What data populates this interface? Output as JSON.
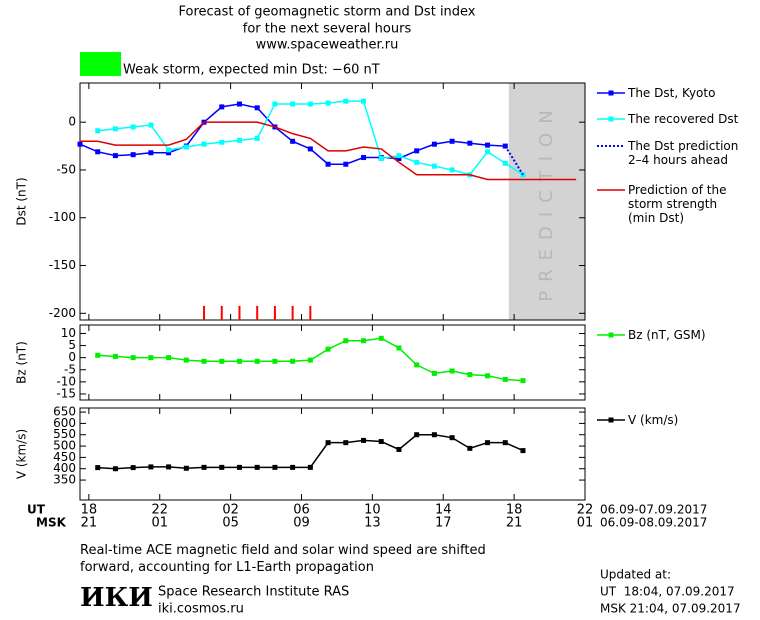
{
  "header": {
    "title": "Forecast of geomagnetic storm and Dst index",
    "subtitle": "for the next several hours",
    "source": "www.spaceweather.ru"
  },
  "storm_level": {
    "label": "Weak storm, expected min Dst: −60 nT",
    "color": "#00ff00"
  },
  "chart_data": [
    {
      "type": "line",
      "ylabel": "Dst (nT)",
      "xlim": [
        17.5,
        46
      ],
      "ylim": [
        -207,
        41
      ],
      "yticks": [
        0,
        -50,
        -100,
        -150,
        -200
      ],
      "prediction_band": [
        41.7,
        46
      ],
      "prediction_label": "PREDICTION",
      "prediction_color": "#d3d3d3",
      "storm_marks": {
        "color": "#ff0000",
        "x": [
          24.5,
          25.5,
          26.5,
          27.5,
          28.5,
          29.5,
          30.5
        ]
      },
      "series": [
        {
          "name": "The Dst, Kyoto",
          "color": "#0000ff",
          "marker": "square",
          "style": "solid",
          "x": [
            17.5,
            18.5,
            19.5,
            20.5,
            21.5,
            22.5,
            23.5,
            24.5,
            25.5,
            26.5,
            27.5,
            28.5,
            29.5,
            30.5,
            31.5,
            32.5,
            33.5,
            34.5,
            35.5,
            36.5,
            37.5,
            38.5,
            39.5,
            40.5,
            41.5
          ],
          "values": [
            -23,
            -31,
            -35,
            -34,
            -32,
            -32,
            -25,
            0,
            16,
            19,
            15,
            -5,
            -20,
            -28,
            -44,
            -44,
            -37,
            -37,
            -38,
            -30,
            -23,
            -20,
            -22,
            -24,
            -25
          ]
        },
        {
          "name": "The recovered Dst",
          "color": "#00ffff",
          "marker": "square",
          "style": "solid",
          "x": [
            18.5,
            19.5,
            20.5,
            21.5,
            22.5,
            23.5,
            24.5,
            25.5,
            26.5,
            27.5,
            28.5,
            29.5,
            30.5,
            31.5,
            32.5,
            33.5,
            34.5,
            35.5,
            36.5,
            37.5,
            38.5,
            39.5,
            40.5,
            41.5,
            42.5
          ],
          "values": [
            -9,
            -7,
            -5,
            -3,
            -29,
            -26,
            -23,
            -21,
            -19,
            -17,
            19,
            19,
            19,
            20,
            22,
            22,
            -38,
            -35,
            -42,
            -46,
            -50,
            -55,
            -31,
            -43,
            -55
          ]
        },
        {
          "name": "The Dst prediction\n2–4 hours ahead",
          "color": "#0000ff",
          "marker": "none",
          "style": "dotted",
          "x": [
            41.5,
            42.5
          ],
          "values": [
            -25,
            -55
          ]
        },
        {
          "name": "Prediction of the\nstorm strength\n(min Dst)",
          "color": "#dd0000",
          "marker": "none",
          "style": "solid",
          "x": [
            17.5,
            18.5,
            19.5,
            20.5,
            21.5,
            22.5,
            23.5,
            24.5,
            25.5,
            26.5,
            27.5,
            28.5,
            29.5,
            30.5,
            31.5,
            32.5,
            33.5,
            34.5,
            35.5,
            36.5,
            37.5,
            38.5,
            39.5,
            40.5,
            41.5,
            42.5,
            43.5,
            44.5,
            45.5
          ],
          "values": [
            -20,
            -20,
            -24,
            -24,
            -24,
            -24,
            -18,
            0,
            0,
            0,
            0,
            -5,
            -12,
            -17,
            -30,
            -30,
            -26,
            -28,
            -42,
            -55,
            -55,
            -55,
            -55,
            -60,
            -60,
            -60,
            -60,
            -60,
            -60
          ]
        }
      ]
    },
    {
      "type": "line",
      "ylabel": "Bz (nT)",
      "xlim": [
        17.5,
        46
      ],
      "ylim": [
        -17.5,
        13.5
      ],
      "yticks": [
        10,
        5,
        0,
        -5,
        -10,
        -15
      ],
      "series": [
        {
          "name": "Bz (nT, GSM)",
          "color": "#00ee00",
          "marker": "square",
          "style": "solid",
          "x": [
            18.5,
            19.5,
            20.5,
            21.5,
            22.5,
            23.5,
            24.5,
            25.5,
            26.5,
            27.5,
            28.5,
            29.5,
            30.5,
            31.5,
            32.5,
            33.5,
            34.5,
            35.5,
            36.5,
            37.5,
            38.5,
            39.5,
            40.5,
            41.5,
            42.5
          ],
          "values": [
            1,
            0.5,
            0,
            0,
            0,
            -1,
            -1.5,
            -1.5,
            -1.5,
            -1.5,
            -1.5,
            -1.5,
            -1,
            3.5,
            7,
            7,
            8,
            4,
            -3,
            -6.5,
            -5.5,
            -7,
            -7.5,
            -9,
            -9.5
          ]
        }
      ]
    },
    {
      "type": "line",
      "ylabel": "V (km/s)",
      "xlim": [
        17.5,
        46
      ],
      "ylim": [
        262,
        668
      ],
      "yticks": [
        350,
        400,
        450,
        500,
        550,
        600,
        650
      ],
      "xticks": [
        18,
        22,
        {
          "value": 26,
          "label": "02"
        },
        {
          "value": 30,
          "label": "06"
        },
        {
          "value": 34,
          "label": "10"
        },
        {
          "value": 38,
          "label": "14"
        },
        {
          "value": 42,
          "label": "18"
        },
        {
          "value": 46,
          "label": "22"
        }
      ],
      "xticks_msk": [
        {
          "value": 18,
          "label": "21"
        },
        {
          "value": 22,
          "label": "01"
        },
        {
          "value": 26,
          "label": "05"
        },
        {
          "value": 30,
          "label": "09"
        },
        {
          "value": 34,
          "label": "13"
        },
        {
          "value": 38,
          "label": "17"
        },
        {
          "value": 42,
          "label": "21"
        },
        {
          "value": 46,
          "label": "01"
        }
      ],
      "xlabel_ut": "UT",
      "xlabel_msk": "MSK",
      "range_ut": "06.09-07.09.2017",
      "range_msk": "06.09-08.09.2017",
      "series": [
        {
          "name": "V (km/s)",
          "color": "#000000",
          "marker": "square",
          "style": "solid",
          "x": [
            18.5,
            19.5,
            20.5,
            21.5,
            22.5,
            23.5,
            24.5,
            25.5,
            26.5,
            27.5,
            28.5,
            29.5,
            30.5,
            31.5,
            32.5,
            33.5,
            34.5,
            35.5,
            36.5,
            37.5,
            38.5,
            39.5,
            40.5,
            41.5,
            42.5
          ],
          "values": [
            405,
            400,
            405,
            408,
            408,
            402,
            406,
            406,
            406,
            406,
            406,
            406,
            406,
            515,
            515,
            525,
            520,
            485,
            550,
            550,
            537,
            490,
            515,
            515,
            480
          ]
        }
      ]
    }
  ],
  "footer": {
    "note": "Real-time ACE magnetic field and solar wind speed are shifted\nforward, accounting for L1-Earth propagation",
    "logo": "ИКИ",
    "institute": "Space Research Institute RAS",
    "url": "iki.cosmos.ru",
    "updated_label": "Updated at:",
    "updated_ut": "UT  18:04, 07.09.2017",
    "updated_msk": "MSK 21:04, 07.09.2017"
  }
}
